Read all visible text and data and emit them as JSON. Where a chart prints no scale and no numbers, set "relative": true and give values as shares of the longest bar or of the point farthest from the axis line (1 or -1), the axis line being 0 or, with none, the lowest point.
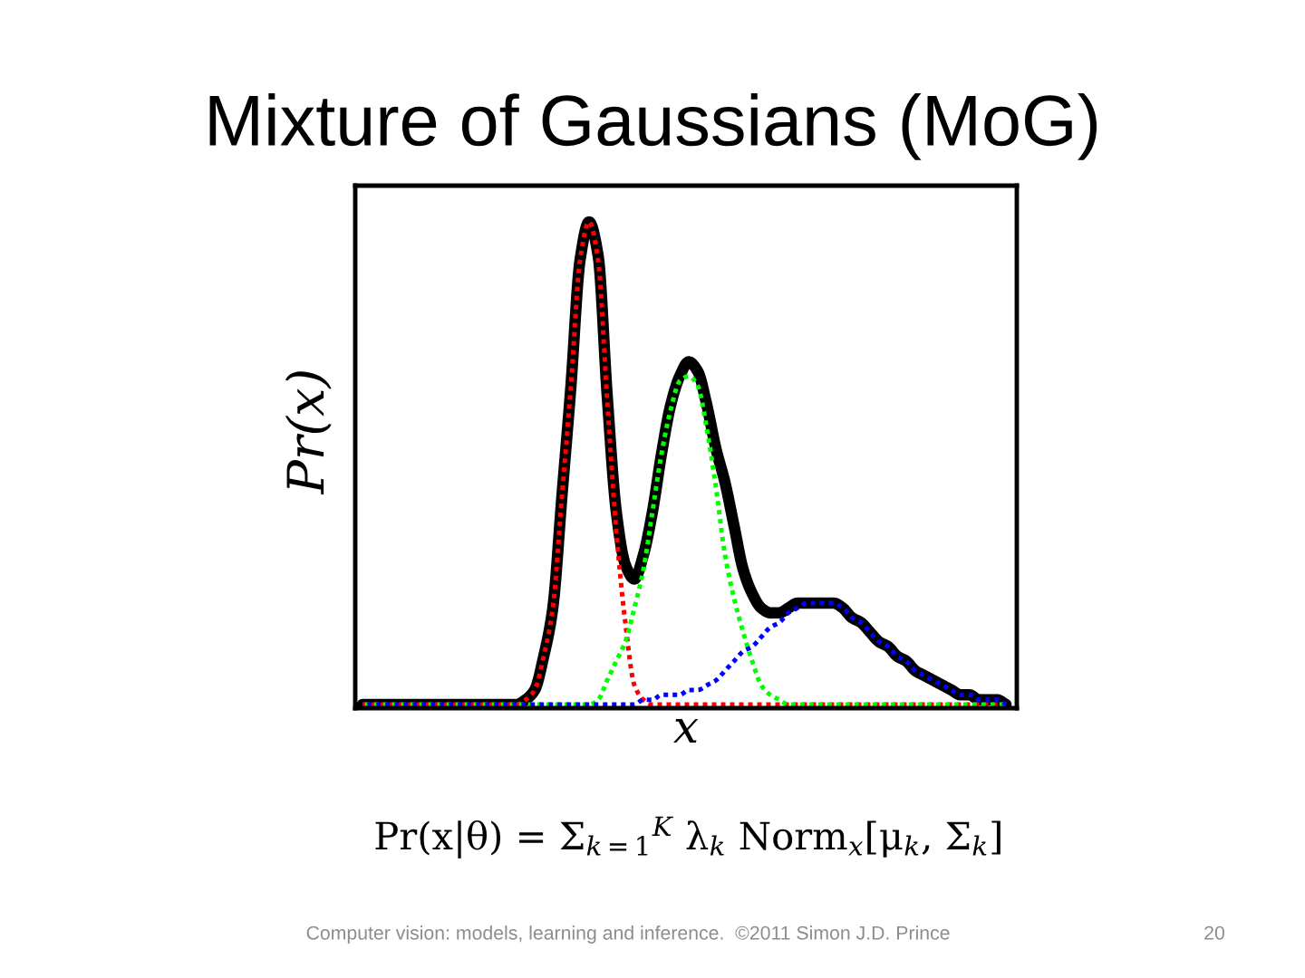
{
  "chart_data": {
    "type": "line",
    "title": "Mixture of Gaussians (MoG)",
    "xlabel": "x",
    "ylabel": "Pr(x)",
    "annotations": [
      "Pr(x|θ) = Σ$_{k=1}$$^{K}$ λ$_{k}$ Norm$_{x}$[μ$_{k}$, Σ$_{k}$]",
      "Computer vision: models, learning and inference.  ©2011 Simon J.D. Prince",
      "20"
    ],
    "relative": true,
    "tick_labels": false,
    "categories": [
      null,
      null,
      null,
      null,
      null,
      null,
      null,
      null,
      null,
      null,
      null,
      null,
      null,
      null,
      null,
      null,
      null,
      null,
      null,
      null,
      null,
      null,
      null,
      null,
      null,
      null,
      null,
      null,
      null,
      null,
      null,
      null,
      null,
      null,
      null,
      null,
      null,
      null,
      null,
      null,
      null,
      null,
      null,
      null,
      null,
      null,
      null,
      null,
      null,
      null,
      null,
      null,
      null,
      null,
      null,
      null,
      null,
      null,
      null,
      null,
      null,
      null,
      null,
      null,
      null,
      null,
      null,
      null,
      null,
      null,
      null,
      null
    ],
    "series": [
      {
        "color": "#000000",
        "line_style": "solid",
        "values": [
          0,
          0,
          0,
          0,
          0,
          0,
          0,
          0,
          0,
          0,
          0,
          0,
          0,
          0,
          0,
          0,
          0,
          0,
          0.01,
          0.03,
          0.1,
          0.2,
          0.43,
          0.66,
          0.92,
          1.0,
          0.93,
          0.64,
          0.4,
          0.29,
          0.26,
          0.31,
          0.4,
          0.52,
          0.62,
          0.68,
          0.71,
          0.69,
          0.62,
          0.53,
          0.46,
          0.37,
          0.28,
          0.23,
          0.2,
          0.19,
          0.19,
          0.2,
          0.21,
          0.21,
          0.21,
          0.21,
          0.21,
          0.2,
          0.18,
          0.17,
          0.15,
          0.13,
          0.12,
          0.1,
          0.09,
          0.07,
          0.06,
          0.05,
          0.04,
          0.03,
          0.02,
          0.02,
          0.01,
          0.01,
          0.01,
          0
        ]
      },
      {
        "color": "#ff0000",
        "line_style": "dotted",
        "values": [
          0,
          0,
          0,
          0,
          0,
          0,
          0,
          0,
          0,
          0,
          0,
          0,
          0,
          0,
          0,
          0,
          0,
          0,
          0.01,
          0.03,
          0.1,
          0.2,
          0.43,
          0.66,
          0.92,
          1.0,
          0.92,
          0.63,
          0.36,
          0.17,
          0.04,
          0.01,
          0,
          0,
          0,
          0,
          0,
          0,
          0,
          0,
          0,
          0,
          0,
          0,
          0,
          0,
          0,
          0,
          0,
          0,
          0,
          0,
          0,
          0,
          0,
          0,
          0,
          0,
          0,
          0,
          0,
          0,
          0,
          0,
          0,
          0,
          0,
          0,
          0,
          0,
          0,
          0
        ]
      },
      {
        "color": "#00ff00",
        "line_style": "dotted",
        "values": [
          0,
          0,
          0,
          0,
          0,
          0,
          0,
          0,
          0,
          0,
          0,
          0,
          0,
          0,
          0,
          0,
          0,
          0,
          0,
          0,
          0,
          0,
          0,
          0,
          0,
          0,
          0.01,
          0.05,
          0.09,
          0.13,
          0.2,
          0.28,
          0.4,
          0.52,
          0.61,
          0.67,
          0.68,
          0.66,
          0.57,
          0.45,
          0.31,
          0.22,
          0.15,
          0.09,
          0.04,
          0.02,
          0.01,
          0,
          0,
          0,
          0,
          0,
          0,
          0,
          0,
          0,
          0,
          0,
          0,
          0,
          0,
          0,
          0,
          0,
          0,
          0,
          0,
          0,
          0,
          0,
          0,
          0
        ]
      },
      {
        "color": "#0000ff",
        "line_style": "dotted",
        "values": [
          0,
          0,
          0,
          0,
          0,
          0,
          0,
          0,
          0,
          0,
          0,
          0,
          0,
          0,
          0,
          0,
          0,
          0,
          0,
          0,
          0,
          0,
          0,
          0,
          0,
          0,
          0,
          0,
          0,
          0,
          0,
          0.01,
          0.01,
          0.02,
          0.02,
          0.02,
          0.03,
          0.03,
          0.04,
          0.05,
          0.07,
          0.09,
          0.11,
          0.12,
          0.14,
          0.16,
          0.17,
          0.19,
          0.2,
          0.21,
          0.21,
          0.21,
          0.21,
          0.2,
          0.18,
          0.17,
          0.15,
          0.13,
          0.12,
          0.1,
          0.09,
          0.07,
          0.06,
          0.05,
          0.04,
          0.03,
          0.02,
          0.02,
          0.01,
          0.01,
          0.01,
          0
        ]
      }
    ]
  }
}
